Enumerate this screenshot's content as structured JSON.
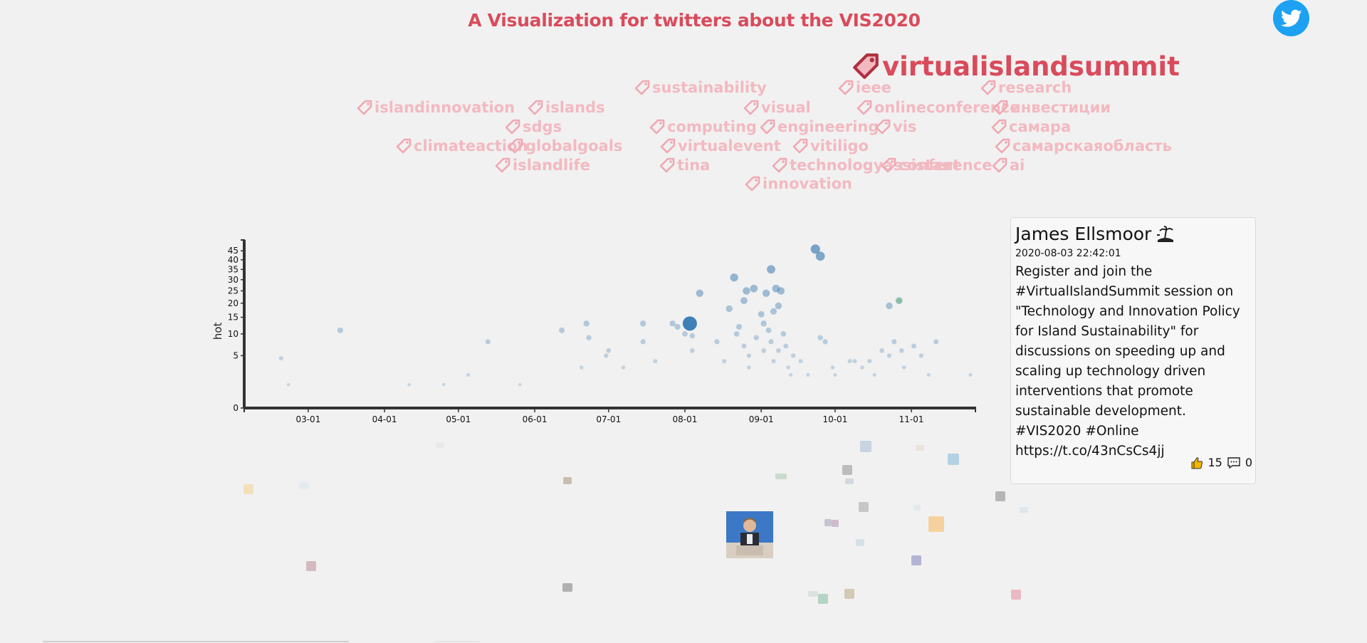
{
  "header": {
    "title": "A Visualization for twitters about the VIS2020"
  },
  "tags": [
    {
      "text": "virtualislandsummit",
      "top": true
    },
    {
      "text": "sustainability"
    },
    {
      "text": "ieee"
    },
    {
      "text": "research"
    },
    {
      "text": "islandinnovation"
    },
    {
      "text": "islands"
    },
    {
      "text": "visual"
    },
    {
      "text": "onlineconference"
    },
    {
      "text": "инвестиции"
    },
    {
      "text": "sdgs"
    },
    {
      "text": "computing"
    },
    {
      "text": "engineering"
    },
    {
      "text": "vis"
    },
    {
      "text": "самара"
    },
    {
      "text": "climateaction"
    },
    {
      "text": "globalgoals"
    },
    {
      "text": "virtualevent"
    },
    {
      "text": "vitiligo"
    },
    {
      "text": "самарскаяобласть"
    },
    {
      "text": "islandlife"
    },
    {
      "text": "tina"
    },
    {
      "text": "technologyassistant"
    },
    {
      "text": "conference"
    },
    {
      "text": "ai"
    },
    {
      "text": "innovation"
    }
  ],
  "colors": {
    "accent": "#d94b5c",
    "tag_faded": "#f3b9c1",
    "point": "#4682b4",
    "point_faded": "#b4cde3",
    "twitter": "#1da1f2"
  },
  "chart_data": {
    "type": "scatter",
    "ylabel": "hot",
    "xlabel": "",
    "y_scale": "sqrt",
    "ylim": [
      0,
      48
    ],
    "x_range": [
      "2020-02-04",
      "2020-11-27"
    ],
    "x_ticks": [
      "03-01",
      "04-01",
      "05-01",
      "06-01",
      "07-01",
      "08-01",
      "09-01",
      "10-01",
      "11-01"
    ],
    "y_ticks": [
      0,
      5,
      10,
      15,
      20,
      25,
      30,
      35,
      40,
      45
    ],
    "highlighted": {
      "x": "2020-08-03",
      "y": 13
    },
    "points": [
      {
        "x": "2020-02-19",
        "y": 4.5
      },
      {
        "x": "2020-02-22",
        "y": 1
      },
      {
        "x": "2020-03-14",
        "y": 11
      },
      {
        "x": "2020-04-11",
        "y": 1
      },
      {
        "x": "2020-04-25",
        "y": 1
      },
      {
        "x": "2020-05-05",
        "y": 2
      },
      {
        "x": "2020-05-13",
        "y": 8
      },
      {
        "x": "2020-05-26",
        "y": 1
      },
      {
        "x": "2020-06-12",
        "y": 11
      },
      {
        "x": "2020-06-20",
        "y": 3
      },
      {
        "x": "2020-06-22",
        "y": 13
      },
      {
        "x": "2020-06-23",
        "y": 9
      },
      {
        "x": "2020-06-30",
        "y": 5
      },
      {
        "x": "2020-07-01",
        "y": 6
      },
      {
        "x": "2020-07-07",
        "y": 3
      },
      {
        "x": "2020-07-15",
        "y": 13
      },
      {
        "x": "2020-07-15",
        "y": 8
      },
      {
        "x": "2020-07-20",
        "y": 4
      },
      {
        "x": "2020-07-27",
        "y": 13
      },
      {
        "x": "2020-07-29",
        "y": 12
      },
      {
        "x": "2020-08-01",
        "y": 10
      },
      {
        "x": "2020-08-04",
        "y": 9.5
      },
      {
        "x": "2020-08-04",
        "y": 6
      },
      {
        "x": "2020-08-07",
        "y": 24
      },
      {
        "x": "2020-08-14",
        "y": 8
      },
      {
        "x": "2020-08-17",
        "y": 4
      },
      {
        "x": "2020-08-19",
        "y": 18
      },
      {
        "x": "2020-08-21",
        "y": 31
      },
      {
        "x": "2020-08-22",
        "y": 10
      },
      {
        "x": "2020-08-23",
        "y": 12
      },
      {
        "x": "2020-08-25",
        "y": 21
      },
      {
        "x": "2020-08-25",
        "y": 7
      },
      {
        "x": "2020-08-26",
        "y": 25
      },
      {
        "x": "2020-08-27",
        "y": 5
      },
      {
        "x": "2020-08-27",
        "y": 3
      },
      {
        "x": "2020-08-29",
        "y": 26
      },
      {
        "x": "2020-08-30",
        "y": 9
      },
      {
        "x": "2020-09-01",
        "y": 16
      },
      {
        "x": "2020-09-02",
        "y": 6
      },
      {
        "x": "2020-09-02",
        "y": 13
      },
      {
        "x": "2020-09-03",
        "y": 24
      },
      {
        "x": "2020-09-04",
        "y": 11
      },
      {
        "x": "2020-09-05",
        "y": 35
      },
      {
        "x": "2020-09-05",
        "y": 8
      },
      {
        "x": "2020-09-06",
        "y": 17
      },
      {
        "x": "2020-09-06",
        "y": 4
      },
      {
        "x": "2020-09-07",
        "y": 26
      },
      {
        "x": "2020-09-08",
        "y": 19
      },
      {
        "x": "2020-09-08",
        "y": 6
      },
      {
        "x": "2020-09-09",
        "y": 25
      },
      {
        "x": "2020-09-10",
        "y": 10
      },
      {
        "x": "2020-09-11",
        "y": 7
      },
      {
        "x": "2020-09-12",
        "y": 3
      },
      {
        "x": "2020-09-13",
        "y": 2
      },
      {
        "x": "2020-09-14",
        "y": 5
      },
      {
        "x": "2020-09-17",
        "y": 4
      },
      {
        "x": "2020-09-20",
        "y": 2
      },
      {
        "x": "2020-09-23",
        "y": 46
      },
      {
        "x": "2020-09-25",
        "y": 42
      },
      {
        "x": "2020-09-25",
        "y": 9
      },
      {
        "x": "2020-09-27",
        "y": 8
      },
      {
        "x": "2020-09-30",
        "y": 3
      },
      {
        "x": "2020-10-01",
        "y": 2
      },
      {
        "x": "2020-10-07",
        "y": 4
      },
      {
        "x": "2020-10-09",
        "y": 4
      },
      {
        "x": "2020-10-12",
        "y": 3
      },
      {
        "x": "2020-10-15",
        "y": 4
      },
      {
        "x": "2020-10-17",
        "y": 2
      },
      {
        "x": "2020-10-20",
        "y": 6
      },
      {
        "x": "2020-10-23",
        "y": 19
      },
      {
        "x": "2020-10-23",
        "y": 5
      },
      {
        "x": "2020-10-25",
        "y": 8
      },
      {
        "x": "2020-10-27",
        "y": 21
      },
      {
        "x": "2020-10-28",
        "y": 6
      },
      {
        "x": "2020-10-29",
        "y": 3
      },
      {
        "x": "2020-11-02",
        "y": 7
      },
      {
        "x": "2020-11-05",
        "y": 5
      },
      {
        "x": "2020-11-08",
        "y": 2
      },
      {
        "x": "2020-11-11",
        "y": 8
      },
      {
        "x": "2020-11-25",
        "y": 2
      }
    ]
  },
  "tweet_card": {
    "user_name": "James Ellsmoor",
    "timestamp": "2020-08-03 22:42:01",
    "text": "Register and join the #VirtualIslandSummit session on \"Technology and Innovation Policy for Island Sustainability\" for discussions on speeding up and scaling up technology driven interventions that promote sustainable development. #VIS2020 #Online https://t.co/43nCsCs4jj",
    "likes": "15",
    "comments": "0"
  }
}
